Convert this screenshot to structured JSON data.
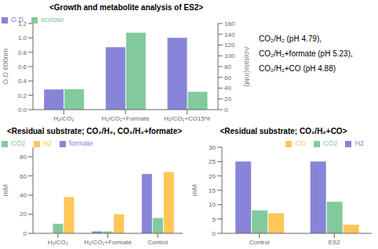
{
  "chart_data": [
    {
      "type": "bar",
      "title": "<Growth and metabolite analysis of ES2>",
      "categories": [
        "H₂/CO₂",
        "H₂/CO₂+Formate",
        "H₂/CO₂+CO15%"
      ],
      "series": [
        {
          "name": "O.D",
          "color": "#8884d8",
          "values": [
            0.28,
            0.87,
            1.0
          ]
        },
        {
          "name": "acetate",
          "color": "#82ca9d",
          "values": [
            38,
            143,
            33
          ],
          "axis": "y2"
        }
      ],
      "ylabel": "O.D 600nm",
      "y2label": "Acetate(mM)",
      "ylim": [
        0,
        1.2
      ],
      "yticks": [
        {
          "value": 0,
          "label": "0.0"
        },
        0.2,
        0.4,
        0.6,
        0.8,
        {
          "value": 1,
          "label": "1.0"
        },
        1.2
      ],
      "y2lim": [
        0,
        160
      ],
      "y2ticks": [
        0,
        20,
        40,
        60,
        80,
        100,
        120,
        140,
        160
      ],
      "legend": "upper left",
      "grid": false,
      "annotation": "CO₂/H₂ (pH 4.79),\nCO₂/H₂+formate (pH 5.23),\nCO₂/H₂+CO (pH 4.88)"
    },
    {
      "type": "bar",
      "title": "<Residual substrate; CO₂/H₂, CO₂/H₂+formate>",
      "categories": [
        "H₂/CO₂",
        "H₂/CO₂+Formate",
        "Control"
      ],
      "series": [
        {
          "name": "formate",
          "color": "#8884d8",
          "values": [
            0,
            2,
            62
          ]
        },
        {
          "name": "CO2",
          "color": "#82ca9d",
          "values": [
            10,
            2,
            16
          ]
        },
        {
          "name": "H2",
          "color": "#ffc658",
          "values": [
            38,
            20,
            64
          ]
        }
      ],
      "ylabel": "mM",
      "ylim": [
        0,
        90
      ],
      "yticks": [
        0,
        20,
        40,
        60,
        80
      ],
      "legend": "upper left",
      "grid": false
    },
    {
      "type": "bar",
      "title": "<Residual substrate; CO₂/H₂+CO>",
      "categories": [
        "Control",
        "ES2"
      ],
      "series": [
        {
          "name": "H2",
          "color": "#8884d8",
          "values": [
            25,
            25
          ]
        },
        {
          "name": "CO2",
          "color": "#82ca9d",
          "values": [
            8,
            11
          ]
        },
        {
          "name": "CO",
          "color": "#ffc658",
          "values": [
            7,
            3
          ]
        }
      ],
      "ylabel": "mM",
      "ylim": [
        0,
        30
      ],
      "yticks": [
        0,
        5,
        10,
        15,
        20,
        25,
        30
      ],
      "legend": "upper right",
      "grid": false
    }
  ]
}
